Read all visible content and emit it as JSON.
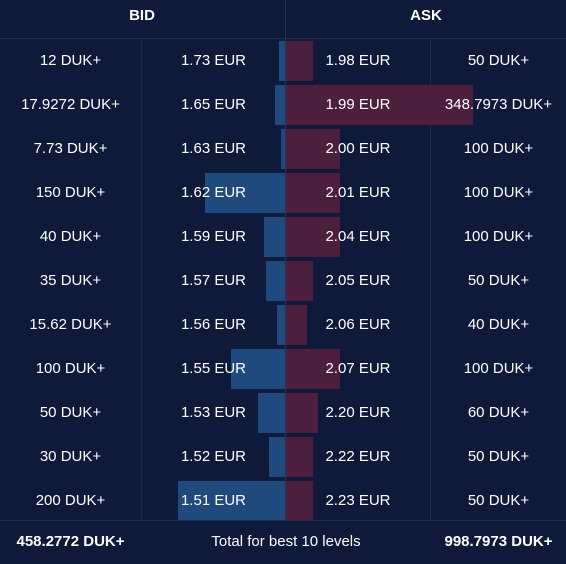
{
  "header": {
    "bid_label": "BID",
    "ask_label": "ASK"
  },
  "colors": {
    "background": "#0f1a3a",
    "bid_bar": "#1f4a7e",
    "ask_bar": "#4c1f3c"
  },
  "max_bar_amount": 348.7973,
  "bids": [
    {
      "amount": "12 DUK+",
      "price": "1.73 EUR",
      "qty": 12
    },
    {
      "amount": "17.9272 DUK+",
      "price": "1.65 EUR",
      "qty": 17.9272
    },
    {
      "amount": "7.73 DUK+",
      "price": "1.63 EUR",
      "qty": 7.73
    },
    {
      "amount": "150 DUK+",
      "price": "1.62 EUR",
      "qty": 150
    },
    {
      "amount": "40 DUK+",
      "price": "1.59 EUR",
      "qty": 40
    },
    {
      "amount": "35 DUK+",
      "price": "1.57 EUR",
      "qty": 35
    },
    {
      "amount": "15.62 DUK+",
      "price": "1.56 EUR",
      "qty": 15.62
    },
    {
      "amount": "100 DUK+",
      "price": "1.55 EUR",
      "qty": 100
    },
    {
      "amount": "50 DUK+",
      "price": "1.53 EUR",
      "qty": 50
    },
    {
      "amount": "30 DUK+",
      "price": "1.52 EUR",
      "qty": 30
    },
    {
      "amount": "200 DUK+",
      "price": "1.51 EUR",
      "qty": 200
    }
  ],
  "asks": [
    {
      "price": "1.98 EUR",
      "amount": "50 DUK+",
      "qty": 50
    },
    {
      "price": "1.99 EUR",
      "amount": "348.7973 DUK+",
      "qty": 348.7973
    },
    {
      "price": "2.00 EUR",
      "amount": "100 DUK+",
      "qty": 100
    },
    {
      "price": "2.01 EUR",
      "amount": "100 DUK+",
      "qty": 100
    },
    {
      "price": "2.04 EUR",
      "amount": "100 DUK+",
      "qty": 100
    },
    {
      "price": "2.05 EUR",
      "amount": "50 DUK+",
      "qty": 50
    },
    {
      "price": "2.06 EUR",
      "amount": "40 DUK+",
      "qty": 40
    },
    {
      "price": "2.07 EUR",
      "amount": "100 DUK+",
      "qty": 100
    },
    {
      "price": "2.20 EUR",
      "amount": "60 DUK+",
      "qty": 60
    },
    {
      "price": "2.22 EUR",
      "amount": "50 DUK+",
      "qty": 50
    },
    {
      "price": "2.23 EUR",
      "amount": "50 DUK+",
      "qty": 50
    }
  ],
  "footer": {
    "bid_total": "458.2772 DUK+",
    "label": "Total for best 10 levels",
    "ask_total": "998.7973 DUK+"
  }
}
